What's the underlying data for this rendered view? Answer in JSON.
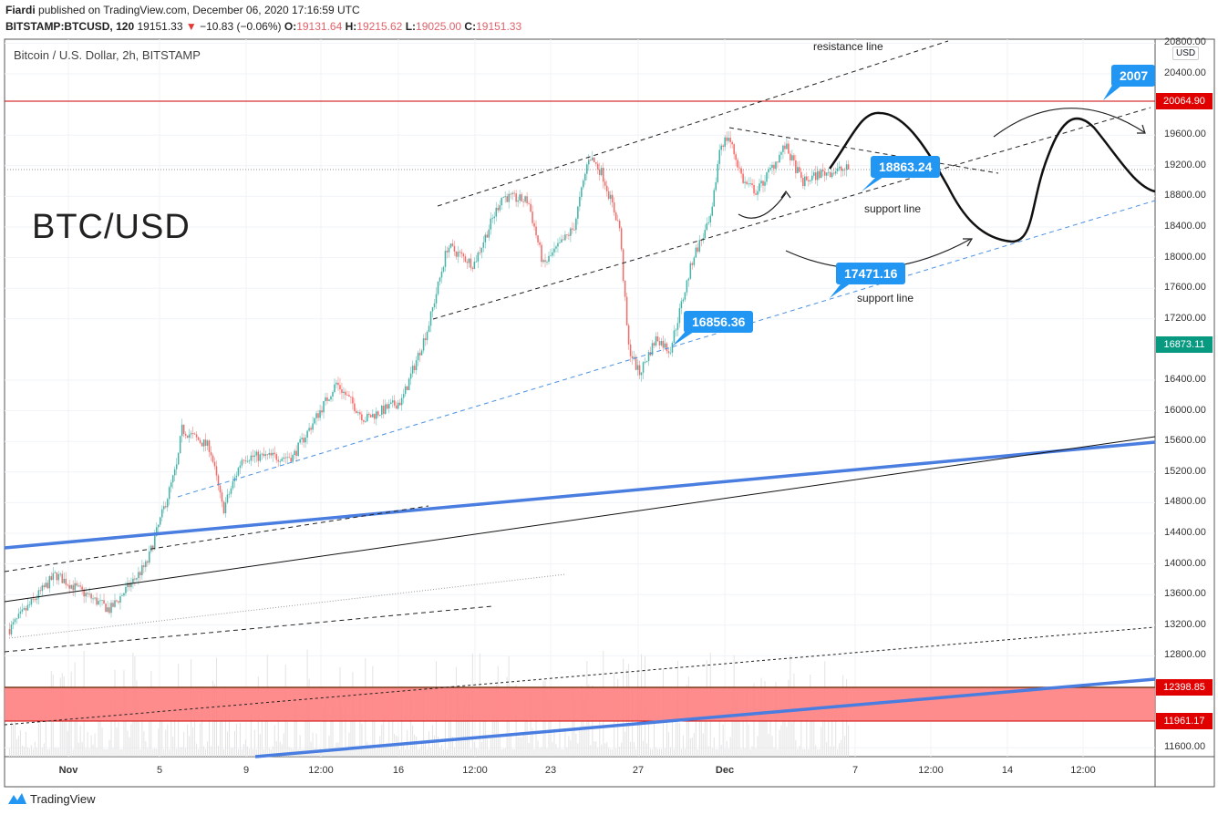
{
  "header": {
    "author": "Fiardi",
    "published": "published on TradingView.com, December 06, 2020 17:16:59 UTC",
    "symbol": "BITSTAMP:BTCUSD, 120",
    "last": "19151.33",
    "change": "−10.83 (−0.06%)",
    "open_label": "O:",
    "open": "19131.64",
    "high_label": "H:",
    "high": "19215.62",
    "low_label": "L:",
    "low": "19025.00",
    "close_label": "C:",
    "close": "19151.33"
  },
  "chart": {
    "title": "Bitcoin / U.S. Dollar, 2h, BITSTAMP",
    "watermark": "BTC/USD",
    "currency": "USD",
    "price_ticks": [
      "20800.00",
      "20400.00",
      "19600.00",
      "19200.00",
      "18800.00",
      "18400.00",
      "18000.00",
      "17600.00",
      "17200.00",
      "16400.00",
      "16000.00",
      "15600.00",
      "15200.00",
      "14800.00",
      "14400.00",
      "14000.00",
      "13600.00",
      "13200.00",
      "12800.00",
      "11600.00"
    ],
    "time_ticks": [
      "Nov",
      "5",
      "9",
      "12:00",
      "16",
      "12:00",
      "23",
      "27",
      "Dec",
      "7",
      "12:00",
      "14",
      "12:00"
    ],
    "price_tags": {
      "resistance": "20064.90",
      "current": "16873.11",
      "zone_top": "12398.85",
      "zone_bottom": "11961.17"
    },
    "annotations": {
      "resistance_line": "resistance line",
      "support_line_1": "support line",
      "support_line_2": "support line",
      "callout_1": "18863.24",
      "callout_2": "17471.16",
      "callout_3": "16856.36",
      "callout_4": "2007"
    },
    "colors": {
      "up": "#26a69a",
      "down": "#ef5350",
      "accent": "#2196f3",
      "resistance": "#e00000",
      "zone": "#ff8080"
    },
    "price_path": [
      [
        -1.7,
        13150
      ],
      [
        0.4,
        13860
      ],
      [
        1,
        13750
      ],
      [
        2.9,
        13400
      ],
      [
        4.6,
        14000
      ],
      [
        6.0,
        15300
      ],
      [
        6.2,
        15760
      ],
      [
        7.5,
        15520
      ],
      [
        8.1,
        14700
      ],
      [
        9.0,
        15400
      ],
      [
        11.3,
        15400
      ],
      [
        13.3,
        16360
      ],
      [
        14.6,
        15890
      ],
      [
        16.3,
        16130
      ],
      [
        17.5,
        17080
      ],
      [
        18.4,
        18150
      ],
      [
        19.6,
        17910
      ],
      [
        20.9,
        18800
      ],
      [
        22.1,
        18740
      ],
      [
        22.8,
        17900
      ],
      [
        24.2,
        18390
      ],
      [
        24.9,
        19340
      ],
      [
        25.5,
        19100
      ],
      [
        26.3,
        18390
      ],
      [
        26.7,
        16840
      ],
      [
        27.2,
        16480
      ],
      [
        28.0,
        16960
      ],
      [
        28.6,
        16780
      ],
      [
        29.7,
        18030
      ],
      [
        30.5,
        18500
      ],
      [
        30.9,
        19460
      ],
      [
        31.3,
        19580
      ],
      [
        32.0,
        18980
      ],
      [
        32.6,
        18860
      ],
      [
        33.9,
        19460
      ],
      [
        34.7,
        18980
      ],
      [
        35.5,
        19100
      ],
      [
        36.8,
        19160
      ]
    ]
  },
  "footer": {
    "brand": "TradingView"
  }
}
